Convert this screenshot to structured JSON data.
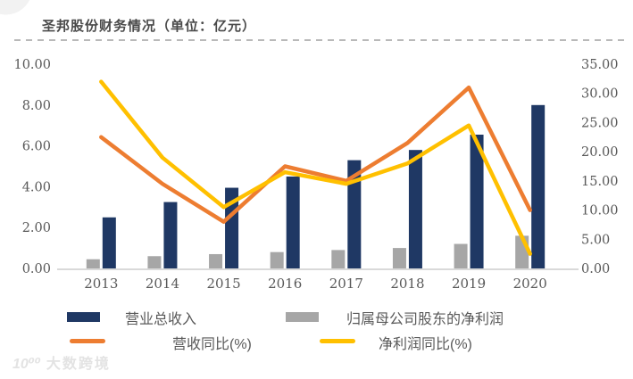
{
  "title": "圣邦股份财务情况（单位：亿元）",
  "watermark": {
    "logo": "10⁰⁰",
    "text": "大数跨境"
  },
  "colors": {
    "revenue_bar": "#1f3864",
    "profit_bar": "#a6a6a6",
    "revenue_yoy_line": "#ed7d31",
    "profit_yoy_line": "#ffc000",
    "axis_line": "#d9d9d9",
    "text_gray": "#595959",
    "title_text": "#4a4a4a"
  },
  "chart_data": {
    "type": "bar",
    "subtype": "combo-bar-line-dual-axis",
    "title": "圣邦股份财务情况（单位：亿元）",
    "categories": [
      "2013",
      "2014",
      "2015",
      "2016",
      "2017",
      "2018",
      "2019",
      "2020"
    ],
    "bar_series": [
      {
        "name": "营业总收入",
        "axis": "left",
        "slot": "right",
        "color": "#1f3864",
        "values": [
          2.5,
          3.25,
          3.95,
          4.5,
          5.3,
          5.8,
          6.55,
          8.0
        ]
      },
      {
        "name": "归属母公司股东的净利润",
        "axis": "left",
        "slot": "left",
        "color": "#a6a6a6",
        "values": [
          0.45,
          0.6,
          0.7,
          0.8,
          0.9,
          1.0,
          1.2,
          1.6
        ]
      }
    ],
    "line_series": [
      {
        "name": "营收同比(%)",
        "axis": "right",
        "color": "#ed7d31",
        "values": [
          22.5,
          14.5,
          8.0,
          17.5,
          15.0,
          21.5,
          31.0,
          10.0
        ]
      },
      {
        "name": "净利润同比(%)",
        "axis": "right",
        "color": "#ffc000",
        "values": [
          32.0,
          19.0,
          10.5,
          16.5,
          14.5,
          18.0,
          24.5,
          2.5
        ]
      }
    ],
    "left_axis": {
      "min": 0,
      "max": 10,
      "step": 2,
      "tick_labels": [
        "0.00",
        "2.00",
        "4.00",
        "6.00",
        "8.00",
        "10.00"
      ]
    },
    "right_axis": {
      "min": 0,
      "max": 35,
      "step": 5,
      "tick_labels": [
        "0.00",
        "5.00",
        "10.00",
        "15.00",
        "20.00",
        "25.00",
        "30.00",
        "35.00"
      ]
    },
    "grid": false,
    "legend_position": "bottom"
  }
}
